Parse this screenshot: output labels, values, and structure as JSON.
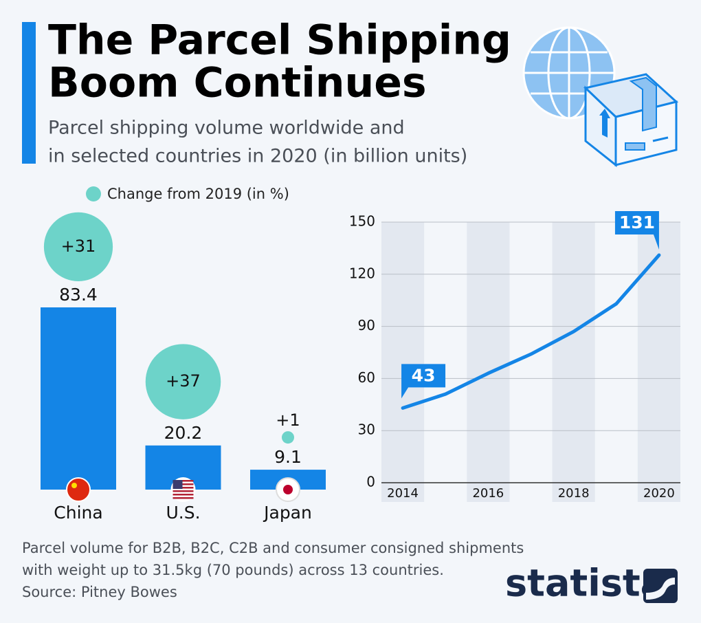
{
  "header": {
    "title": [
      "The Parcel Shipping",
      "Boom Continues"
    ],
    "subtitle": [
      "Parcel shipping volume worldwide and",
      "in selected countries in 2020 (in billion units)"
    ]
  },
  "chart_data": [
    {
      "type": "bar",
      "categories": [
        "China",
        "U.S.",
        "Japan"
      ],
      "series": [
        {
          "color": "#1485e6",
          "values": [
            83.4,
            20.2,
            9.1
          ]
        },
        {
          "name": "Change from 2019 (in %)",
          "color": "#6dd3c9",
          "values": [
            31,
            37,
            1
          ],
          "value_labels": [
            "+31",
            "+37",
            "+1"
          ]
        }
      ]
    },
    {
      "type": "line",
      "x": [
        2014,
        2015,
        2016,
        2017,
        2018,
        2019,
        2020
      ],
      "values": [
        43,
        51,
        63,
        74,
        87,
        103,
        131
      ],
      "color": "#1485e6",
      "xlim": [
        2013.5,
        2020.5
      ],
      "xticks": [
        2014,
        2016,
        2018,
        2020
      ],
      "ylim": [
        0,
        150
      ],
      "yticks": [
        0,
        30,
        60,
        90,
        120,
        150
      ],
      "grid": true,
      "annotated": [
        0,
        6
      ]
    }
  ],
  "footer": {
    "notes": [
      "Parcel volume for B2B, B2C, C2B and consumer consigned shipments",
      "with weight up to 31.5kg (70 pounds) across 13 countries."
    ],
    "source": "Source: Pitney Bowes",
    "logo": "statista"
  }
}
